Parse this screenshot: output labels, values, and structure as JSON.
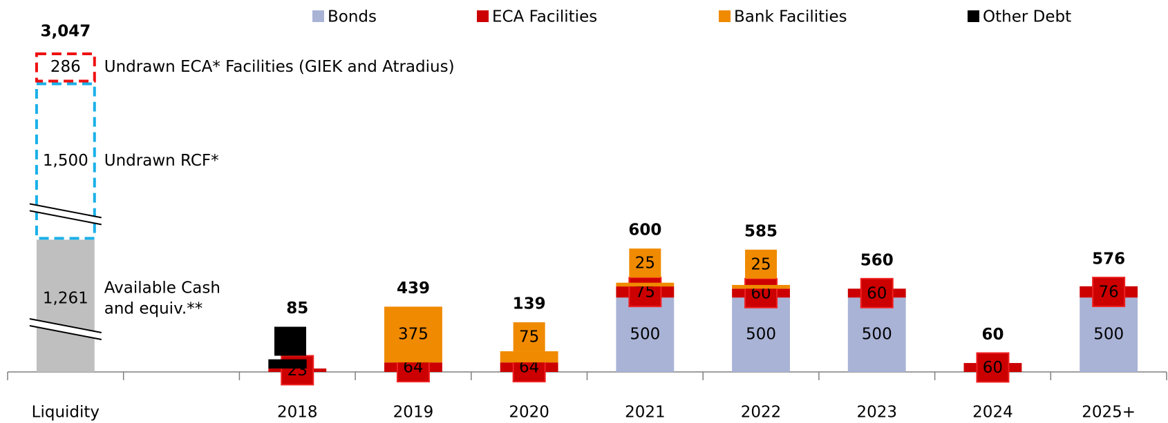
{
  "chart_data": {
    "type": "bar",
    "legend": "top",
    "categories": [
      "Liquidity",
      null,
      "2018",
      "2019",
      "2020",
      "2021",
      "2022",
      "2023",
      "2024",
      "2025+"
    ],
    "ylim": [
      0,
      2000
    ],
    "series": [
      {
        "name": "Bonds",
        "color": "#a9b3d6",
        "values": [
          null,
          null,
          null,
          null,
          null,
          500,
          500,
          500,
          null,
          500
        ]
      },
      {
        "name": "ECA Facilities",
        "color": "#cc0000",
        "values": [
          null,
          null,
          23,
          64,
          64,
          75,
          60,
          60,
          60,
          76
        ]
      },
      {
        "name": "Bank Facilities",
        "color": "#f08a00",
        "values": [
          null,
          null,
          null,
          375,
          75,
          25,
          25,
          null,
          null,
          null
        ]
      },
      {
        "name": "Other Debt",
        "color": "#000000",
        "values": [
          null,
          null,
          62,
          null,
          null,
          null,
          null,
          null,
          null,
          null
        ]
      }
    ],
    "totals": [
      null,
      null,
      85,
      439,
      139,
      600,
      585,
      560,
      60,
      576
    ],
    "liquidity": {
      "total": 3047,
      "total_label": "3,047",
      "items": [
        {
          "name_lines": [
            "Available Cash",
            "and equiv.**"
          ],
          "value": 1261,
          "value_label": "1,261",
          "color": "#bfbfbf",
          "style": "solid"
        },
        {
          "name_lines": [
            "Undrawn RCF*"
          ],
          "value": 1500,
          "value_label": "1,500",
          "color": "#1ab0e8",
          "style": "dashed"
        },
        {
          "name_lines": [
            "Undrawn ECA* Facilities (GIEK and Atradius)"
          ],
          "value": 286,
          "value_label": "286",
          "color": "#ee1111",
          "style": "dashed"
        }
      ]
    }
  }
}
